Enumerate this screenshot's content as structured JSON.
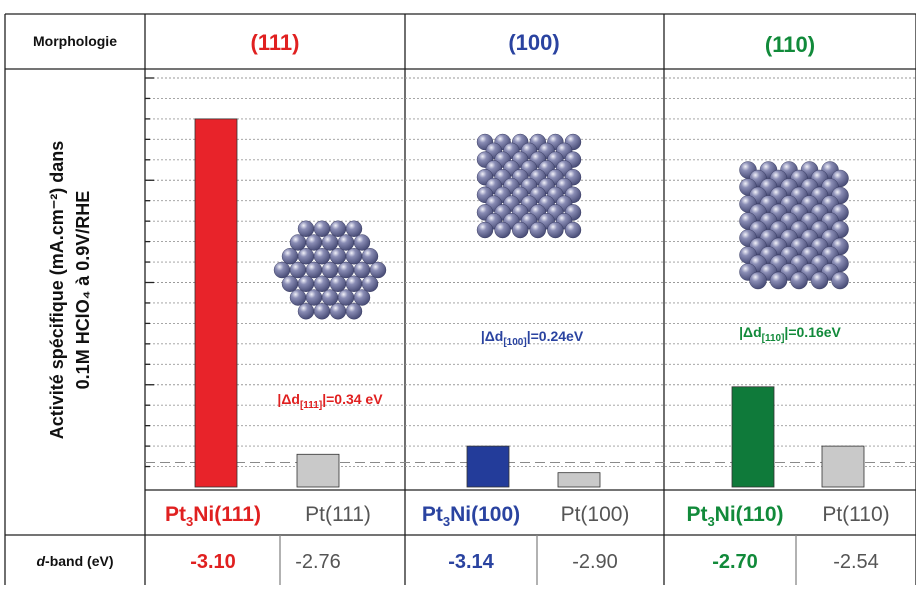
{
  "header": {
    "row_label": "Morphologie",
    "facets": [
      {
        "label": "(111)",
        "color": "#e02020"
      },
      {
        "label": "(100)",
        "color": "#2a43a0"
      },
      {
        "label": "(110)",
        "color": "#118a3a"
      }
    ]
  },
  "ylabel_line1": "Activité spécifique (mA.cm⁻²) dans",
  "ylabel_line2": "0.1M HClO₄ à 0.9V/RHE",
  "annotations": [
    {
      "text": "|Δd[111]|=0.34 eV",
      "main": "|Δd",
      "sub": "[111]",
      "tail": "|=0.34 eV",
      "color": "#e02020"
    },
    {
      "text": "|Δd[100]|=0.24eV",
      "main": "|Δd",
      "sub": "[100]",
      "tail": "|=0.24eV",
      "color": "#2a43a0"
    },
    {
      "text": "|Δd[110]|=0.16eV",
      "main": "|Δd",
      "sub": "[110]",
      "tail": "|=0.16eV",
      "color": "#118a3a"
    }
  ],
  "dband_label": "d-band (eV)",
  "dband_label_italic": "d",
  "dband_label_rest": "-band (eV)",
  "colors": {
    "red": "#e8232a",
    "blue": "#233c9a",
    "green": "#0f7a3a",
    "grey": "#c9c9c9",
    "atom": "#4a4e78"
  },
  "chart_data": {
    "type": "bar",
    "categories": [
      "Pt3Ni(111)",
      "Pt(111)",
      "Pt3Ni(100)",
      "Pt(100)",
      "Pt3Ni(110)",
      "Pt(110)"
    ],
    "category_display": [
      {
        "a": "Pt",
        "sub": "3",
        "b": "Ni(111)",
        "color": "#e02020"
      },
      {
        "a": "Pt(111)",
        "sub": "",
        "b": "",
        "color": "#555555"
      },
      {
        "a": "Pt",
        "sub": "3",
        "b": "Ni(100)",
        "color": "#2a43a0"
      },
      {
        "a": "Pt(100)",
        "sub": "",
        "b": "",
        "color": "#555555"
      },
      {
        "a": "Pt",
        "sub": "3",
        "b": "Ni(110)",
        "color": "#118a3a"
      },
      {
        "a": "Pt(110)",
        "sub": "",
        "b": "",
        "color": "#555555"
      }
    ],
    "values": [
      18.0,
      1.6,
      2.0,
      0.7,
      4.9,
      2.0
    ],
    "bar_colors": [
      "#e8232a",
      "#c9c9c9",
      "#233c9a",
      "#c9c9c9",
      "#0f7a3a",
      "#c9c9c9"
    ],
    "dband_values": [
      "-3.10",
      "-2.76",
      "-3.14",
      "-2.90",
      "-2.70",
      "-2.54"
    ],
    "dband_colors": [
      "#e02020",
      "#555555",
      "#2a43a0",
      "#555555",
      "#118a3a",
      "#555555"
    ],
    "ylim": [
      0,
      20
    ],
    "y_major_ticks": [
      0,
      5,
      10,
      15,
      20
    ],
    "y_minor_step": 1,
    "reference_line": 1.2,
    "grid": true
  }
}
